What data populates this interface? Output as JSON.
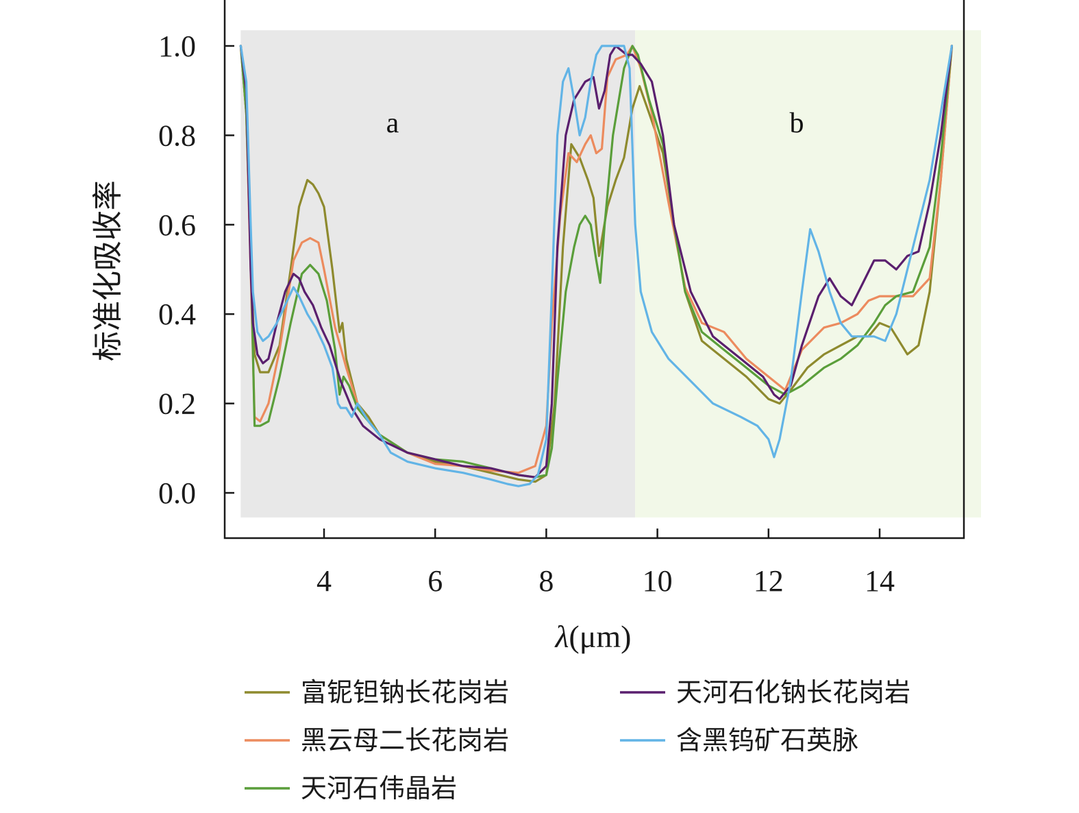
{
  "chart_data": {
    "type": "line",
    "title": "",
    "xlabel_symbol": "λ",
    "xlabel_unit": "(μm)",
    "ylabel": "标准化吸收率",
    "xlim": [
      2.3,
      15.7
    ],
    "ylim": [
      -0.1,
      1.1
    ],
    "xticks": [
      4,
      6,
      8,
      10,
      12,
      14
    ],
    "yticks": [
      "0.0",
      "0.2",
      "0.4",
      "0.6",
      "0.8",
      "1.0"
    ],
    "regions": [
      {
        "label": "a",
        "x_start": 2.5,
        "x_end": 9.6,
        "y_start": -0.055,
        "y_end": 1.035,
        "color": "#e8e8e8",
        "label_pos": [
          3.7,
          0.82
        ]
      },
      {
        "label": "b",
        "x_start": 9.6,
        "x_end": 15.85,
        "y_start": -0.055,
        "y_end": 1.035,
        "color": "#f2f8e8",
        "label_pos": [
          11.0,
          0.82
        ]
      }
    ],
    "legend_position": "bottom",
    "series": [
      {
        "name": "富铌钽钠长花岗岩",
        "color": "#8e8a2e",
        "x": [
          2.5,
          2.6,
          2.68,
          2.75,
          2.85,
          3.0,
          3.2,
          3.4,
          3.55,
          3.7,
          3.8,
          3.9,
          4.0,
          4.15,
          4.28,
          4.33,
          4.4,
          4.6,
          4.8,
          5.0,
          5.5,
          6.0,
          6.5,
          7.0,
          7.5,
          7.8,
          8.0,
          8.15,
          8.3,
          8.45,
          8.6,
          8.75,
          8.85,
          8.95,
          9.1,
          9.25,
          9.4,
          9.55,
          9.68,
          9.85,
          10.1,
          10.3,
          10.5,
          10.8,
          11.2,
          11.6,
          12.0,
          12.2,
          12.4,
          12.7,
          13.0,
          13.3,
          13.6,
          13.8,
          14.0,
          14.2,
          14.5,
          14.7,
          14.9,
          15.1,
          15.3
        ],
        "y": [
          1.0,
          0.85,
          0.52,
          0.31,
          0.27,
          0.27,
          0.33,
          0.5,
          0.64,
          0.7,
          0.69,
          0.67,
          0.64,
          0.5,
          0.36,
          0.38,
          0.3,
          0.2,
          0.17,
          0.13,
          0.09,
          0.07,
          0.06,
          0.045,
          0.03,
          0.025,
          0.04,
          0.2,
          0.55,
          0.78,
          0.75,
          0.7,
          0.66,
          0.53,
          0.64,
          0.7,
          0.75,
          0.86,
          0.91,
          0.85,
          0.76,
          0.6,
          0.45,
          0.34,
          0.3,
          0.26,
          0.21,
          0.2,
          0.23,
          0.28,
          0.31,
          0.33,
          0.35,
          0.35,
          0.38,
          0.37,
          0.31,
          0.33,
          0.45,
          0.7,
          1.0
        ]
      },
      {
        "name": "黑云母二长花岗岩",
        "color": "#ec8b5e",
        "x": [
          2.5,
          2.6,
          2.68,
          2.75,
          2.85,
          3.0,
          3.2,
          3.45,
          3.6,
          3.75,
          3.9,
          4.0,
          4.2,
          4.4,
          4.6,
          4.8,
          5.0,
          5.5,
          6.0,
          6.5,
          7.0,
          7.5,
          7.8,
          8.0,
          8.1,
          8.25,
          8.4,
          8.55,
          8.7,
          8.8,
          8.9,
          9.0,
          9.1,
          9.25,
          9.45,
          9.55,
          9.7,
          9.9,
          10.2,
          10.5,
          10.8,
          11.2,
          11.6,
          12.0,
          12.3,
          12.6,
          13.0,
          13.3,
          13.6,
          13.8,
          14.0,
          14.3,
          14.6,
          14.9,
          15.1,
          15.3
        ],
        "y": [
          1.0,
          0.85,
          0.5,
          0.17,
          0.16,
          0.2,
          0.32,
          0.52,
          0.56,
          0.57,
          0.56,
          0.5,
          0.37,
          0.28,
          0.2,
          0.16,
          0.13,
          0.09,
          0.065,
          0.06,
          0.05,
          0.045,
          0.06,
          0.15,
          0.38,
          0.62,
          0.76,
          0.74,
          0.78,
          0.8,
          0.76,
          0.77,
          0.93,
          0.97,
          0.98,
          1.0,
          0.95,
          0.85,
          0.65,
          0.46,
          0.38,
          0.36,
          0.3,
          0.26,
          0.23,
          0.32,
          0.37,
          0.38,
          0.4,
          0.43,
          0.44,
          0.44,
          0.44,
          0.48,
          0.7,
          1.0
        ]
      },
      {
        "name": "天河石伟晶岩",
        "color": "#5a9e3a",
        "x": [
          2.5,
          2.6,
          2.68,
          2.75,
          2.85,
          3.0,
          3.2,
          3.4,
          3.6,
          3.75,
          3.9,
          4.05,
          4.2,
          4.28,
          4.35,
          4.45,
          4.6,
          4.8,
          5.0,
          5.5,
          6.0,
          6.5,
          7.0,
          7.5,
          7.8,
          8.0,
          8.1,
          8.2,
          8.35,
          8.5,
          8.6,
          8.7,
          8.8,
          8.9,
          8.97,
          9.05,
          9.2,
          9.4,
          9.55,
          9.65,
          9.85,
          10.1,
          10.3,
          10.5,
          10.8,
          11.2,
          11.6,
          12.0,
          12.3,
          12.6,
          13.0,
          13.3,
          13.6,
          13.9,
          14.1,
          14.3,
          14.6,
          14.9,
          15.1,
          15.3
        ],
        "y": [
          1.0,
          0.85,
          0.55,
          0.15,
          0.15,
          0.16,
          0.26,
          0.38,
          0.49,
          0.51,
          0.49,
          0.43,
          0.32,
          0.22,
          0.26,
          0.24,
          0.19,
          0.16,
          0.13,
          0.09,
          0.075,
          0.07,
          0.055,
          0.04,
          0.035,
          0.04,
          0.1,
          0.25,
          0.45,
          0.55,
          0.6,
          0.62,
          0.6,
          0.52,
          0.47,
          0.6,
          0.8,
          0.95,
          1.0,
          0.98,
          0.88,
          0.78,
          0.6,
          0.45,
          0.36,
          0.32,
          0.28,
          0.24,
          0.22,
          0.24,
          0.28,
          0.3,
          0.33,
          0.38,
          0.42,
          0.44,
          0.45,
          0.55,
          0.75,
          1.0
        ]
      },
      {
        "name": "天河石化钠长花岗岩",
        "color": "#5a1f6e",
        "x": [
          2.5,
          2.6,
          2.68,
          2.72,
          2.8,
          2.9,
          3.0,
          3.15,
          3.3,
          3.45,
          3.55,
          3.65,
          3.8,
          3.95,
          4.1,
          4.3,
          4.5,
          4.7,
          5.0,
          5.5,
          6.0,
          6.5,
          7.0,
          7.5,
          7.8,
          8.0,
          8.1,
          8.2,
          8.35,
          8.5,
          8.7,
          8.85,
          8.95,
          9.05,
          9.15,
          9.25,
          9.35,
          9.45,
          9.55,
          9.7,
          9.9,
          10.1,
          10.3,
          10.6,
          11.0,
          11.5,
          11.9,
          12.1,
          12.2,
          12.4,
          12.6,
          12.9,
          13.1,
          13.3,
          13.5,
          13.7,
          13.9,
          14.1,
          14.3,
          14.5,
          14.7,
          14.9,
          15.1,
          15.3
        ],
        "y": [
          1.0,
          0.9,
          0.5,
          0.38,
          0.31,
          0.29,
          0.3,
          0.38,
          0.45,
          0.49,
          0.48,
          0.45,
          0.42,
          0.37,
          0.33,
          0.25,
          0.19,
          0.15,
          0.12,
          0.09,
          0.075,
          0.06,
          0.055,
          0.04,
          0.035,
          0.06,
          0.2,
          0.55,
          0.8,
          0.88,
          0.92,
          0.93,
          0.86,
          0.9,
          0.98,
          1.0,
          0.99,
          0.98,
          0.98,
          0.96,
          0.92,
          0.8,
          0.6,
          0.45,
          0.35,
          0.3,
          0.26,
          0.22,
          0.21,
          0.24,
          0.33,
          0.44,
          0.48,
          0.44,
          0.42,
          0.47,
          0.52,
          0.52,
          0.5,
          0.53,
          0.54,
          0.65,
          0.8,
          1.0
        ]
      },
      {
        "name": "含黑钨矿石英脉",
        "color": "#62b4e6",
        "x": [
          2.5,
          2.6,
          2.68,
          2.72,
          2.8,
          2.9,
          3.0,
          3.15,
          3.3,
          3.45,
          3.55,
          3.7,
          3.85,
          4.0,
          4.15,
          4.25,
          4.3,
          4.4,
          4.5,
          4.6,
          4.8,
          5.0,
          5.2,
          5.5,
          6.0,
          6.5,
          7.0,
          7.3,
          7.5,
          7.7,
          7.85,
          8.0,
          8.1,
          8.2,
          8.3,
          8.4,
          8.5,
          8.6,
          8.7,
          8.8,
          8.9,
          9.0,
          9.2,
          9.4,
          9.5,
          9.6,
          9.7,
          9.9,
          10.2,
          10.6,
          11.0,
          11.5,
          11.8,
          12.0,
          12.1,
          12.2,
          12.4,
          12.6,
          12.75,
          12.9,
          13.1,
          13.3,
          13.5,
          13.7,
          13.9,
          14.1,
          14.3,
          14.6,
          14.9,
          15.1,
          15.3
        ],
        "y": [
          1.0,
          0.92,
          0.6,
          0.45,
          0.36,
          0.34,
          0.35,
          0.38,
          0.42,
          0.46,
          0.44,
          0.4,
          0.37,
          0.33,
          0.28,
          0.2,
          0.19,
          0.19,
          0.17,
          0.2,
          0.16,
          0.13,
          0.09,
          0.07,
          0.055,
          0.045,
          0.03,
          0.02,
          0.015,
          0.02,
          0.04,
          0.12,
          0.45,
          0.8,
          0.92,
          0.95,
          0.88,
          0.8,
          0.84,
          0.92,
          0.98,
          1.0,
          1.0,
          1.0,
          0.95,
          0.6,
          0.45,
          0.36,
          0.3,
          0.25,
          0.2,
          0.17,
          0.15,
          0.12,
          0.08,
          0.12,
          0.25,
          0.45,
          0.59,
          0.54,
          0.45,
          0.38,
          0.35,
          0.35,
          0.35,
          0.34,
          0.4,
          0.55,
          0.7,
          0.85,
          1.0
        ]
      }
    ]
  }
}
